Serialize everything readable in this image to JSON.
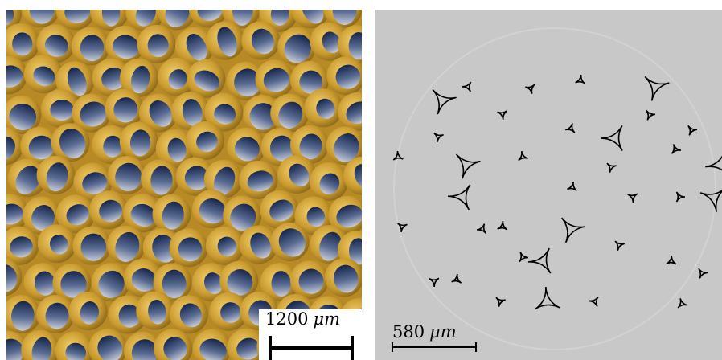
{
  "left_panel": {
    "scale_value": "1200",
    "scale_unit": "μm"
  },
  "right_panel": {
    "scale_value": "580",
    "scale_unit": "μm"
  }
}
